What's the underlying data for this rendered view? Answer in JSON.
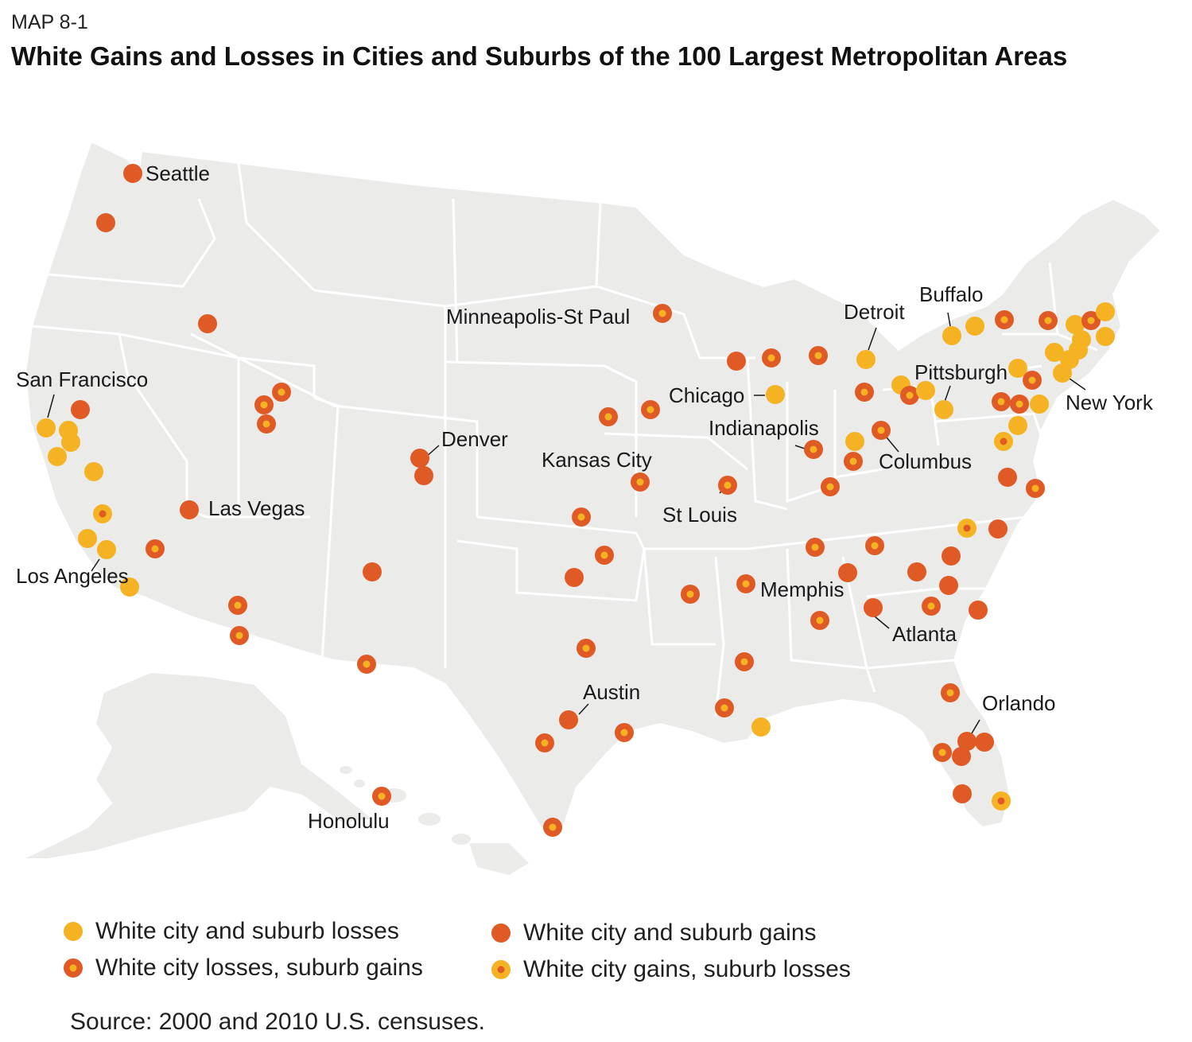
{
  "header": {
    "kicker": "MAP 8-1",
    "title": "White Gains and Losses in Cities and Suburbs of the 100 Largest Metropolitan Areas"
  },
  "colors": {
    "land": "#ebebea",
    "borders": "#ffffff",
    "yellow": "#f5b324",
    "orange": "#e05a25",
    "center_orange": "#e05a25",
    "center_yellow": "#f5b324"
  },
  "legend": [
    {
      "key": "both_losses",
      "label": "White city and suburb losses"
    },
    {
      "key": "city_loss_suburb_gain",
      "label": "White city losses, suburb gains"
    },
    {
      "key": "both_gains",
      "label": "White city and suburb gains"
    },
    {
      "key": "city_gain_suburb_loss",
      "label": "White city gains, suburb losses"
    }
  ],
  "source": "Source: 2000 and 2010 U.S. censuses.",
  "labels": {
    "seattle": "Seattle",
    "san_francisco": "San Francisco",
    "los_angeles": "Los Angeles",
    "las_vegas": "Las Vegas",
    "denver": "Denver",
    "minneapolis": "Minneapolis-St Paul",
    "kansas_city": "Kansas City",
    "chicago": "Chicago",
    "st_louis": "St Louis",
    "indianapolis": "Indianapolis",
    "detroit": "Detroit",
    "buffalo": "Buffalo",
    "pittsburgh": "Pittsburgh",
    "columbus": "Columbus",
    "new_york": "New York",
    "memphis": "Memphis",
    "atlanta": "Atlanta",
    "austin": "Austin",
    "orlando": "Orlando",
    "honolulu": "Honolulu"
  }
}
